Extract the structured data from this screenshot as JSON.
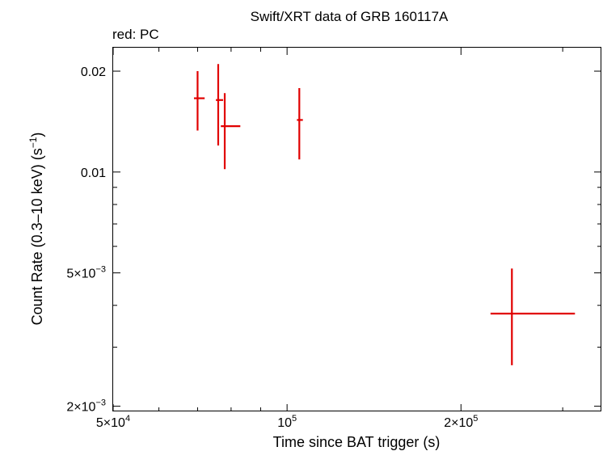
{
  "chart_data": {
    "type": "scatter",
    "title": "Swift/XRT data of GRB 160117A",
    "subtitle": "red: PC",
    "xlabel": "Time since BAT trigger (s)",
    "ylabel_main": "Count Rate (0.3–10 keV) (s",
    "ylabel_sup": "−1",
    "ylabel_end": ")",
    "xscale": "log",
    "yscale": "log",
    "xlim": [
      50000,
      350000
    ],
    "ylim": [
      0.00193,
      0.0235
    ],
    "x_ticks": [
      {
        "value": 50000,
        "mant": "5×10",
        "exp": "4"
      },
      {
        "value": 100000,
        "mant": "10",
        "exp": "5"
      },
      {
        "value": 200000,
        "mant": "2×10",
        "exp": "5"
      }
    ],
    "y_ticks": [
      {
        "value": 0.02,
        "mant": "0.02",
        "exp": ""
      },
      {
        "value": 0.01,
        "mant": "0.01",
        "exp": ""
      },
      {
        "value": 0.005,
        "mant": "5×10",
        "exp": "−3"
      },
      {
        "value": 0.002,
        "mant": "2×10",
        "exp": "−3"
      }
    ],
    "series": [
      {
        "color": "#e10000",
        "points": [
          {
            "x": 70000,
            "xlo": 69000,
            "xhi": 72000,
            "y": 0.0166,
            "ylo": 0.0133,
            "yhi": 0.02
          },
          {
            "x": 76000,
            "xlo": 75300,
            "xhi": 77500,
            "y": 0.0164,
            "ylo": 0.012,
            "yhi": 0.021
          },
          {
            "x": 78000,
            "xlo": 76800,
            "xhi": 83000,
            "y": 0.0137,
            "ylo": 0.0102,
            "yhi": 0.0172
          },
          {
            "x": 105000,
            "xlo": 104000,
            "xhi": 106500,
            "y": 0.0143,
            "ylo": 0.0109,
            "yhi": 0.0178
          },
          {
            "x": 245000,
            "xlo": 225000,
            "xhi": 315000,
            "y": 0.00378,
            "ylo": 0.00265,
            "yhi": 0.00515
          }
        ]
      }
    ]
  }
}
